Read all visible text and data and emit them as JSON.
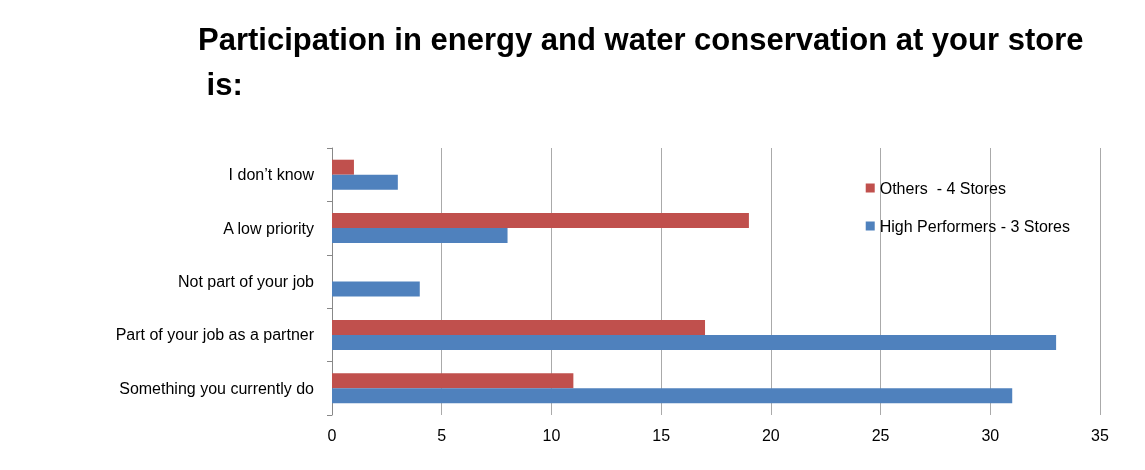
{
  "chart_data": {
    "type": "bar",
    "orientation": "horizontal",
    "title": "Participation in energy and water conservation at your store is:",
    "categories": [
      "I don’t know",
      "A low priority",
      "Not part of your job",
      "Part of your job as a partner",
      "Something you currently do"
    ],
    "series": [
      {
        "name": "Others  - 4 Stores",
        "color": "#c0504d",
        "values": [
          1,
          19,
          0,
          17,
          11
        ]
      },
      {
        "name": "High Performers - 3 Stores",
        "color": "#4f81bd",
        "values": [
          3,
          8,
          4,
          33,
          31
        ]
      }
    ],
    "xlim": [
      0,
      35
    ],
    "xticks": [
      0,
      5,
      10,
      15,
      20,
      25,
      30,
      35
    ],
    "grid": "x",
    "legend": "top right"
  }
}
